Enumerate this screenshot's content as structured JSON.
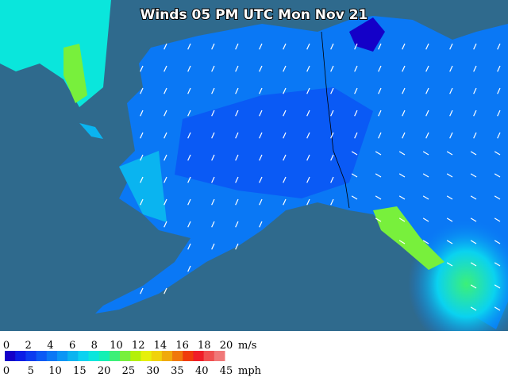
{
  "map": {
    "title": "Winds 05 PM UTC Mon Nov 21"
  },
  "legend": {
    "colors": [
      "#1400c8",
      "#0a1ee6",
      "#0a3cf0",
      "#0a5af5",
      "#0a78f5",
      "#0a96f5",
      "#0ab4f0",
      "#0ad2f0",
      "#0ae6dc",
      "#14f0b4",
      "#3cf078",
      "#78f03c",
      "#b4f00a",
      "#e6f00a",
      "#f0d20a",
      "#f0aa0a",
      "#f0780a",
      "#f03c0a",
      "#f01e28",
      "#f05050",
      "#f07878"
    ],
    "ms_ticks": [
      0,
      2,
      4,
      6,
      8,
      10,
      12,
      14,
      16,
      18,
      20
    ],
    "ms_unit": "m/s",
    "mph_ticks": [
      0,
      5,
      10,
      15,
      20,
      25,
      30,
      35,
      40,
      45
    ],
    "mph_unit": "mph"
  }
}
